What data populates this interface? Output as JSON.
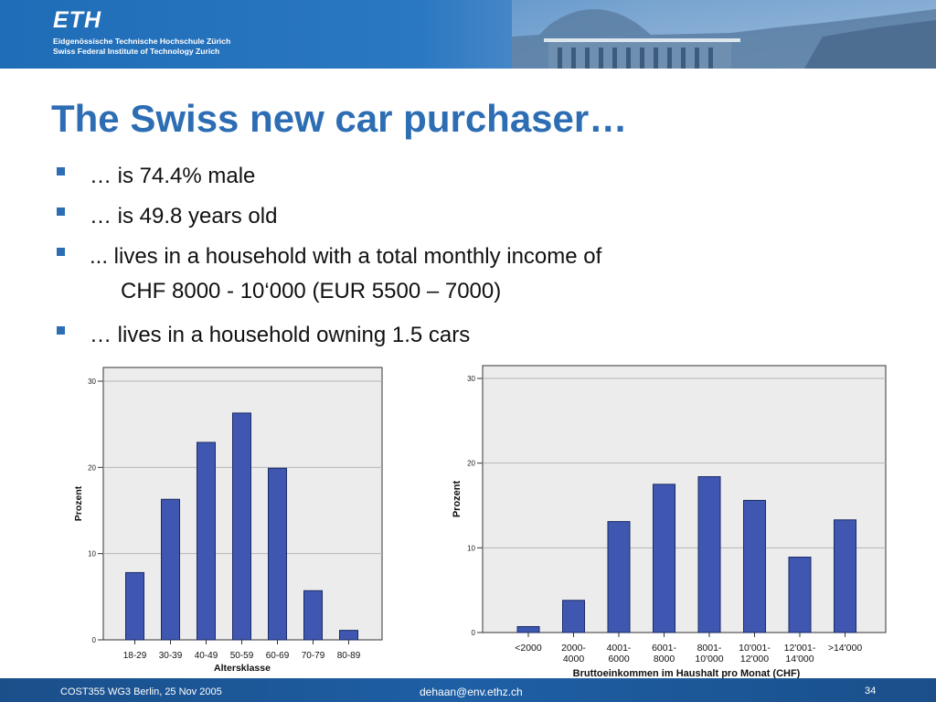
{
  "header": {
    "logo": "ETH",
    "institution_de": "Eidgenössische Technische Hochschule Zürich",
    "institution_en": "Swiss Federal Institute of Technology Zurich"
  },
  "slide": {
    "title": "The Swiss new car purchaser…",
    "bullets": [
      {
        "line1": "… is 74.4% male",
        "line2": ""
      },
      {
        "line1": "… is 49.8 years old",
        "line2": ""
      },
      {
        "line1": "... lives in a household with a total monthly income of",
        "line2": "CHF 8000 - 10‘000 (EUR 5500 – 7000)"
      },
      {
        "line1": "… lives in a household owning 1.5 cars",
        "line2": ""
      }
    ]
  },
  "footer": {
    "left": "COST355 WG3 Berlin, 25 Nov 2005",
    "center": "dehaan@env.ethz.ch",
    "right": "34"
  },
  "colors": {
    "accent": "#2d6db4",
    "bar_fill": "#3f57b0",
    "plot_bg": "#ececec",
    "header_blue": "#1f6cb7",
    "footer_blue": "#1e5fa5"
  },
  "chart_data": [
    {
      "type": "bar",
      "categories": [
        "18-29",
        "30-39",
        "40-49",
        "50-59",
        "60-69",
        "70-79",
        "80-89"
      ],
      "values": [
        7.8,
        16.3,
        22.9,
        26.3,
        19.9,
        5.7,
        1.1
      ],
      "xlabel": "Altersklasse",
      "ylabel": "Prozent",
      "ylim": [
        0,
        30
      ],
      "yticks": [
        0,
        10,
        20,
        30
      ],
      "grid": true
    },
    {
      "type": "bar",
      "categories": [
        [
          "<2000"
        ],
        [
          "2000-",
          "4000"
        ],
        [
          "4001-",
          "6000"
        ],
        [
          "6001-",
          "8000"
        ],
        [
          "8001-",
          "10'000"
        ],
        [
          "10'001-",
          "12'000"
        ],
        [
          "12'001-",
          "14'000"
        ],
        [
          ">14'000"
        ]
      ],
      "values": [
        0.7,
        3.8,
        13.1,
        17.5,
        18.4,
        15.6,
        8.9,
        13.3
      ],
      "xlabel": "Bruttoeinkommen im Haushalt pro Monat (CHF)",
      "ylabel": "Prozent",
      "ylim": [
        0,
        30
      ],
      "yticks": [
        0,
        10,
        20,
        30
      ],
      "grid": true
    }
  ]
}
